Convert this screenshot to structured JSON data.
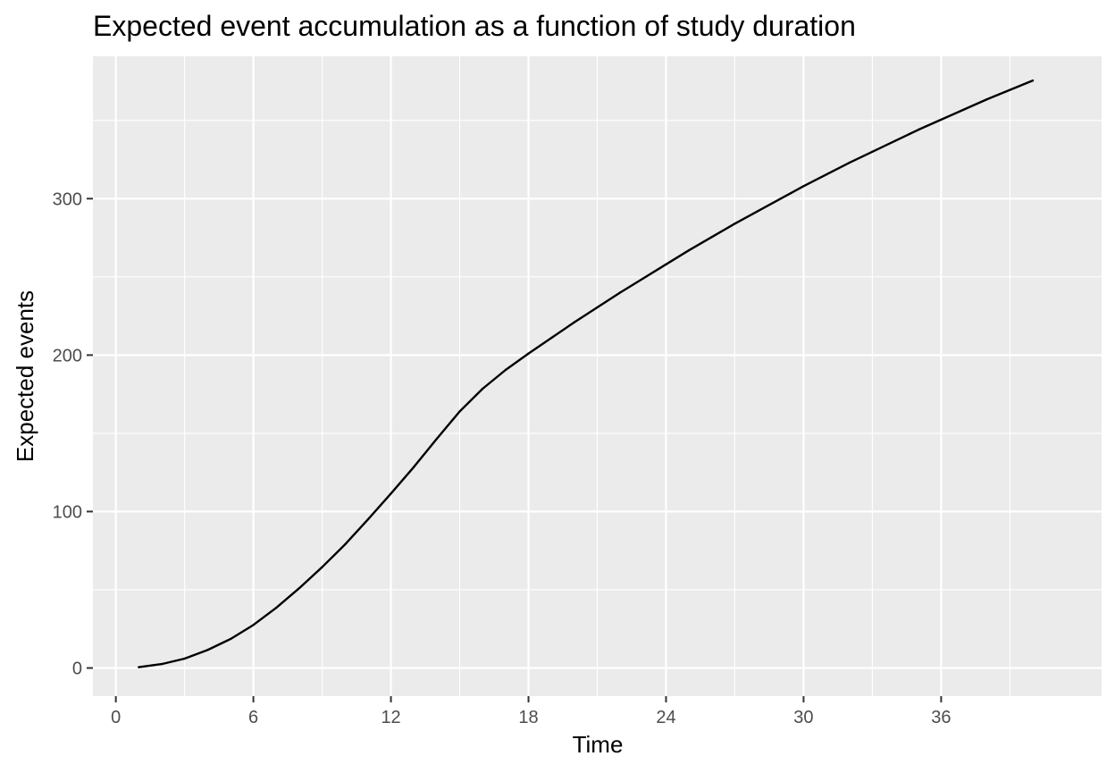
{
  "chart_data": {
    "type": "line",
    "title": "Expected event accumulation as a function of study duration",
    "xlabel": "Time",
    "ylabel": "Expected events",
    "xlim": [
      -1,
      43
    ],
    "ylim": [
      -18,
      391
    ],
    "x_ticks": [
      0,
      6,
      12,
      18,
      24,
      30,
      36
    ],
    "x_tick_labels": [
      "0",
      "6",
      "12",
      "18",
      "24",
      "30",
      "36"
    ],
    "y_ticks": [
      0,
      100,
      200,
      300
    ],
    "y_tick_labels": [
      "0",
      "100",
      "200",
      "300"
    ],
    "grid": true,
    "legend": "none",
    "colors": {
      "panel": "#ebebeb",
      "grid": "#ffffff",
      "line": "#000000",
      "tick": "#333333"
    },
    "series": [
      {
        "x": [
          1,
          2,
          3,
          4,
          5,
          6,
          7,
          8,
          9,
          10,
          11,
          12,
          13,
          14,
          15,
          16,
          17,
          18,
          19,
          20,
          21,
          22,
          23,
          24,
          25,
          26,
          27,
          28,
          29,
          30,
          31,
          32,
          33,
          34,
          35,
          36,
          37,
          38,
          39,
          40
        ],
        "values": [
          0.5,
          2.5,
          6,
          11.5,
          18.5,
          27.5,
          38.5,
          51,
          64.5,
          79,
          95,
          111.5,
          128.5,
          146.5,
          164,
          178.5,
          190.5,
          201,
          211,
          221,
          230.5,
          240,
          249,
          258,
          267,
          275.5,
          284,
          292,
          300,
          308,
          315.5,
          323,
          330,
          337,
          344,
          350.5,
          357,
          363.5,
          369.5,
          375.5
        ]
      }
    ]
  }
}
